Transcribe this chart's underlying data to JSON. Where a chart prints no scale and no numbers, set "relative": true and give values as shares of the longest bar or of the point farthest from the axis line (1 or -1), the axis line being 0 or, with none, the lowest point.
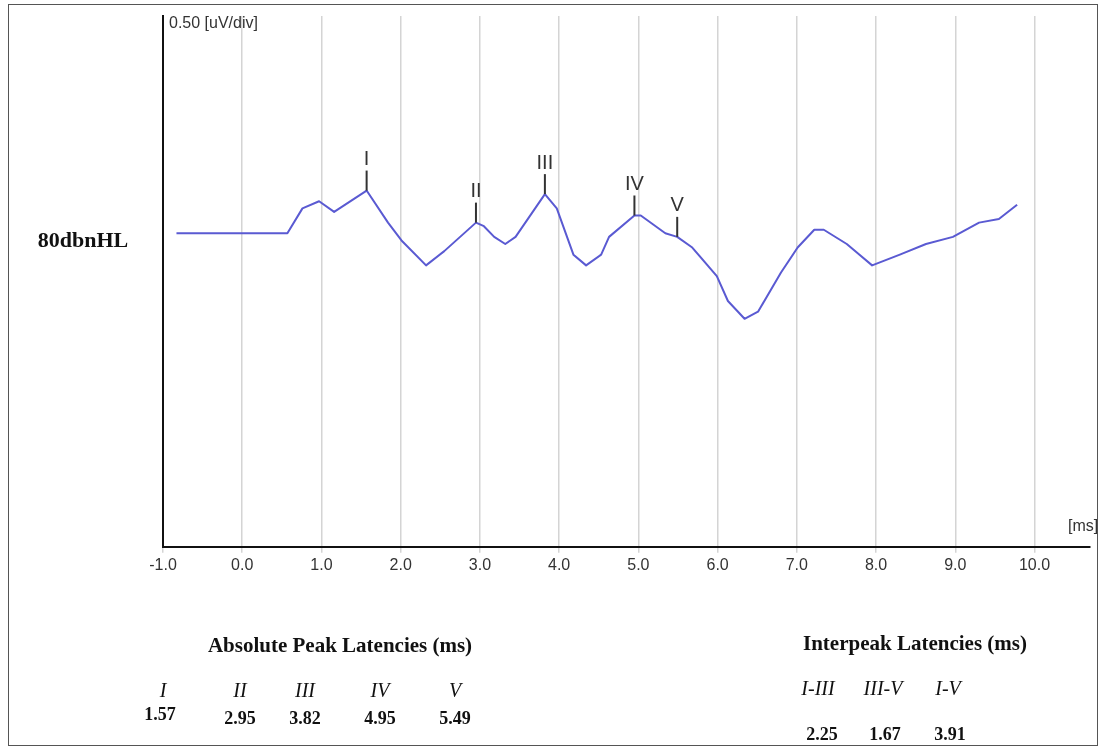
{
  "chart_data": {
    "type": "line",
    "relative": true,
    "xlabel": "[ms]",
    "x": [
      -0.83,
      0.57,
      0.76,
      0.97,
      1.16,
      1.57,
      1.84,
      2.01,
      2.32,
      2.55,
      2.95,
      3.05,
      3.18,
      3.32,
      3.45,
      3.82,
      3.97,
      4.18,
      4.34,
      4.53,
      4.63,
      4.95,
      5.03,
      5.34,
      5.49,
      5.68,
      5.99,
      6.13,
      6.34,
      6.51,
      6.8,
      7.01,
      7.22,
      7.34,
      7.63,
      7.95,
      8.3,
      8.63,
      8.97,
      9.3,
      9.55,
      9.78
    ],
    "values": [
      0.88,
      0.88,
      0.95,
      0.97,
      0.94,
      1.0,
      0.91,
      0.86,
      0.79,
      0.83,
      0.91,
      0.9,
      0.87,
      0.85,
      0.87,
      0.99,
      0.95,
      0.82,
      0.79,
      0.82,
      0.87,
      0.93,
      0.93,
      0.88,
      0.87,
      0.84,
      0.76,
      0.69,
      0.64,
      0.66,
      0.77,
      0.84,
      0.89,
      0.89,
      0.85,
      0.79,
      0.82,
      0.85,
      0.87,
      0.91,
      0.92,
      0.96
    ],
    "color": "#5a5ad2",
    "line_style": "solid",
    "marker": "none",
    "grid": "x",
    "xlim": [
      -1.0,
      10.7
    ],
    "xticks": [
      {
        "value": -1,
        "label": "-1.0"
      },
      {
        "value": 0,
        "label": "0.0"
      },
      {
        "value": 1,
        "label": "1.0"
      },
      {
        "value": 2,
        "label": "2.0"
      },
      {
        "value": 3,
        "label": "3.0"
      },
      {
        "value": 4,
        "label": "4.0"
      },
      {
        "value": 5,
        "label": "5.0"
      },
      {
        "value": 6,
        "label": "6.0"
      },
      {
        "value": 7,
        "label": "7.0"
      },
      {
        "value": 8,
        "label": "8.0"
      },
      {
        "value": 9,
        "label": "9.0"
      },
      {
        "value": 10,
        "label": "10.0"
      }
    ],
    "annotations": [
      {
        "text": "I",
        "x": 1.57,
        "y": 1.0
      },
      {
        "text": "II",
        "x": 2.95,
        "y": 0.91
      },
      {
        "text": "III",
        "x": 3.82,
        "y": 0.99
      },
      {
        "text": "IV",
        "x": 4.95,
        "y": 0.93
      },
      {
        "text": "V",
        "x": 5.49,
        "y": 0.87
      },
      "80dbnHL",
      "Absolute Peak Latencies (ms)",
      "I",
      "II",
      "III",
      "IV",
      "V",
      "1.57",
      "2.95",
      "3.82",
      "4.95",
      "5.49",
      "Interpeak Latencies (ms)",
      "I-III",
      "III-V",
      "I-V",
      "2.25",
      "1.67",
      "3.91",
      "0.50 [uV/div]"
    ]
  }
}
